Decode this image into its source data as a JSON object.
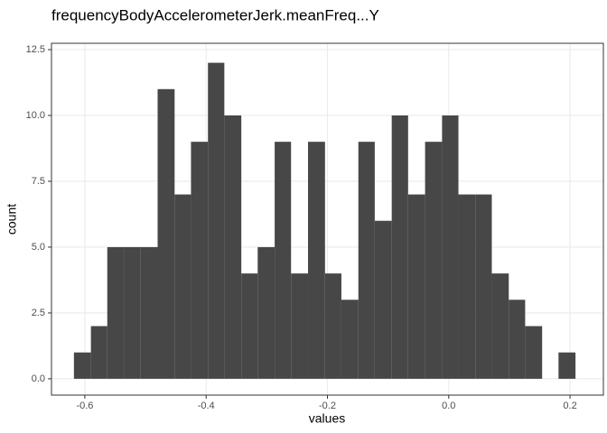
{
  "chart_data": {
    "type": "histogram",
    "title": "frequencyBodyAccelerometerJerk.meanFreq...Y",
    "x_label": "values",
    "y_label": "count",
    "bins": [
      -0.618,
      -0.59,
      -0.563,
      -0.535,
      -0.508,
      -0.48,
      -0.452,
      -0.425,
      -0.397,
      -0.37,
      -0.342,
      -0.315,
      -0.287,
      -0.26,
      -0.232,
      -0.204,
      -0.177,
      -0.149,
      -0.122,
      -0.094,
      -0.067,
      -0.039,
      -0.011,
      0.016,
      0.044,
      0.071,
      0.099,
      0.126,
      0.154,
      0.181,
      0.209
    ],
    "values": [
      1,
      2,
      5,
      5,
      5,
      11,
      7,
      9,
      12,
      10,
      4,
      5,
      9,
      4,
      9,
      4,
      3,
      9,
      6,
      10,
      7,
      9,
      10,
      7,
      7,
      4,
      3,
      2,
      0,
      1
    ],
    "color": "#474747",
    "xlim": [
      -0.655,
      0.255
    ],
    "xticks": [
      -0.6,
      -0.4,
      -0.2,
      {
        "value": 0,
        "label": "0.0"
      },
      0.2
    ],
    "ylim": [
      -0.62,
      12.74
    ],
    "yticks": [
      {
        "value": 0,
        "label": "0.0"
      },
      2.5,
      {
        "value": 5,
        "label": "5.0"
      },
      7.5,
      {
        "value": 10,
        "label": "10.0"
      },
      12.5
    ],
    "grid": true
  }
}
